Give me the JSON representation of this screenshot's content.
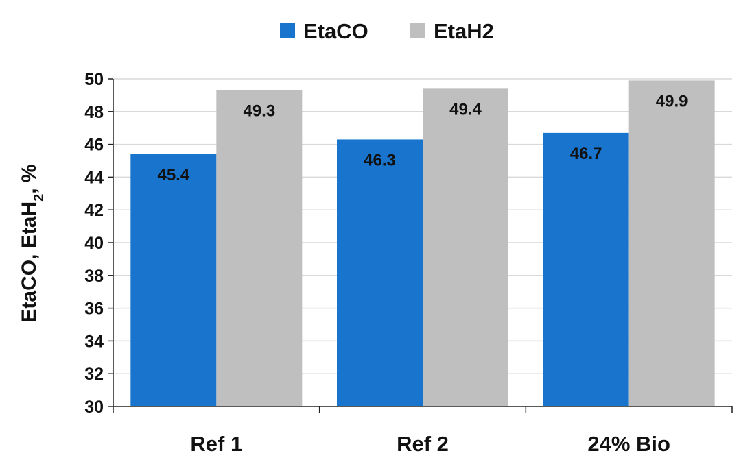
{
  "chart_data": {
    "type": "bar",
    "categories": [
      "Ref 1",
      "Ref 2",
      "24% Bio"
    ],
    "series": [
      {
        "name": "EtaCO",
        "values": [
          45.4,
          46.3,
          46.7
        ],
        "color": "#1874CD"
      },
      {
        "name": "EtaH2",
        "values": [
          49.3,
          49.4,
          49.9
        ],
        "color": "#BFBFBF"
      }
    ],
    "data_labels": [
      [
        "45.4",
        "46.3",
        "46.7"
      ],
      [
        "49.3",
        "49.4",
        "49.9"
      ]
    ],
    "ylabel": {
      "main": "EtaCO, EtaH",
      "sub": "2",
      "suffix": ", %"
    },
    "xlabel": "",
    "ylim": [
      30,
      50
    ],
    "y_ticks": [
      30,
      32,
      34,
      36,
      38,
      40,
      42,
      44,
      46,
      48,
      50
    ],
    "grid": true,
    "legend": "top-center"
  }
}
